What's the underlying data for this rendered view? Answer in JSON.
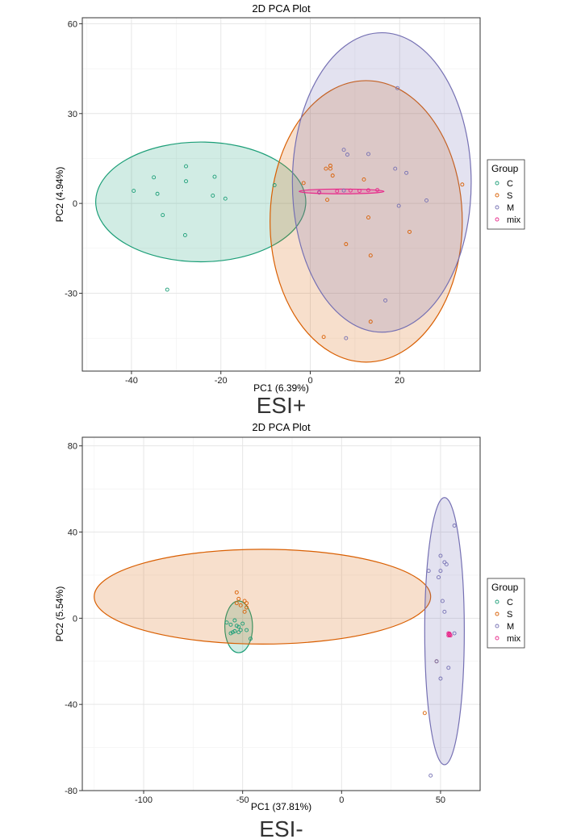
{
  "chart_data": [
    {
      "type": "scatter",
      "title": "2D PCA Plot",
      "xlabel": "PC1 (6.39%)",
      "ylabel": "PC2 (4.94%)",
      "panel_label": "ESI+",
      "xlim": [
        -51,
        38
      ],
      "ylim": [
        -56,
        62
      ],
      "xticks": [
        -40,
        -20,
        0,
        20
      ],
      "yticks": [
        -30,
        0,
        30,
        60
      ],
      "grid": true,
      "legend_title": "Group",
      "legend_placement": "right",
      "series": [
        {
          "name": "C",
          "color": "#1b9e77",
          "points": [
            [
              -39.5,
              4.2
            ],
            [
              -35,
              8.7
            ],
            [
              -34.2,
              3.2
            ],
            [
              -33,
              -3.9
            ],
            [
              -28,
              -10.6
            ],
            [
              -27.8,
              12.4
            ],
            [
              -27.8,
              7.4
            ],
            [
              -21.8,
              2.6
            ],
            [
              -21.4,
              8.9
            ],
            [
              -19,
              1.6
            ],
            [
              -8,
              6.1
            ],
            [
              -32,
              -28.8
            ]
          ],
          "ellipse": {
            "cx": -24.5,
            "cy": 0.5,
            "rx": 23.5,
            "ry": 20
          }
        },
        {
          "name": "S",
          "color": "#d95f02",
          "points": [
            [
              -1.5,
              6.8
            ],
            [
              3.5,
              11.6
            ],
            [
              4.5,
              12.6
            ],
            [
              4.5,
              11.6
            ],
            [
              5,
              9.3
            ],
            [
              3.8,
              1.2
            ],
            [
              8,
              -13.6
            ],
            [
              12,
              8
            ],
            [
              13,
              -4.7
            ],
            [
              13.5,
              -17.4
            ],
            [
              13.5,
              -39.5
            ],
            [
              22.2,
              -9.5
            ],
            [
              34,
              6.3
            ],
            [
              3,
              -44.6
            ]
          ],
          "ellipse": {
            "cx": 12.5,
            "cy": -6,
            "rx": 21.5,
            "ry": 47
          }
        },
        {
          "name": "M",
          "color": "#7570b3",
          "points": [
            [
              7.5,
              17.9
            ],
            [
              8.3,
              16.3
            ],
            [
              13,
              16.5
            ],
            [
              19,
              11.6
            ],
            [
              19.5,
              38.5
            ],
            [
              21.5,
              10.2
            ],
            [
              19.8,
              -0.8
            ],
            [
              26,
              1
            ],
            [
              16.8,
              -32.4
            ],
            [
              8,
              -45
            ],
            [
              2,
              3.8
            ],
            [
              7.5,
              4.3
            ]
          ],
          "ellipse": {
            "cx": 16,
            "cy": 7,
            "rx": 20,
            "ry": 50
          }
        },
        {
          "name": "mix",
          "color": "#e7298a",
          "points": [
            [
              2,
              3.6
            ],
            [
              6,
              4.1
            ],
            [
              9,
              4.3
            ],
            [
              11,
              4.2
            ],
            [
              13,
              4.4
            ],
            [
              15,
              4.5
            ]
          ],
          "ellipse": {
            "cx": 7,
            "cy": 4,
            "rx": 9.5,
            "ry": 0.8
          }
        }
      ]
    },
    {
      "type": "scatter",
      "title": "2D PCA Plot",
      "xlabel": "PC1 (37.81%)",
      "ylabel": "PC2 (5.54%)",
      "panel_label": "ESI-",
      "xlim": [
        -131,
        70
      ],
      "ylim": [
        -80,
        84
      ],
      "xticks": [
        -100,
        -50,
        0,
        50
      ],
      "yticks": [
        -80,
        -40,
        0,
        40,
        80
      ],
      "grid": true,
      "legend_title": "Group",
      "legend_placement": "right",
      "series": [
        {
          "name": "C",
          "color": "#1b9e77",
          "points": [
            [
              -58,
              -2
            ],
            [
              -56,
              -3
            ],
            [
              -54,
              -1
            ],
            [
              -53,
              -3.5
            ],
            [
              -52,
              -4
            ],
            [
              -51,
              -5.5
            ],
            [
              -52,
              -6.5
            ],
            [
              -54,
              -6
            ],
            [
              -55,
              -6.5
            ],
            [
              -50,
              -2.5
            ],
            [
              -48,
              -5.5
            ],
            [
              -46,
              -9.5
            ],
            [
              -56,
              -7
            ]
          ],
          "ellipse": {
            "cx": -52,
            "cy": -4,
            "rx": 7,
            "ry": 12
          }
        },
        {
          "name": "S",
          "color": "#d95f02",
          "points": [
            [
              -53,
              12
            ],
            [
              -52,
              9
            ],
            [
              -53,
              7
            ],
            [
              -49,
              8
            ],
            [
              -48,
              7
            ],
            [
              -48,
              5
            ],
            [
              -49,
              3
            ],
            [
              -51,
              6
            ],
            [
              42,
              -44
            ],
            [
              48,
              -20
            ]
          ],
          "ellipse": {
            "cx": -40,
            "cy": 10,
            "rx": 85,
            "ry": 22
          }
        },
        {
          "name": "M",
          "color": "#7570b3",
          "points": [
            [
              57,
              43
            ],
            [
              50,
              29
            ],
            [
              52,
              26
            ],
            [
              53,
              25
            ],
            [
              44,
              22
            ],
            [
              50,
              22
            ],
            [
              49,
              19
            ],
            [
              51,
              8
            ],
            [
              52,
              3
            ],
            [
              57,
              -7
            ],
            [
              48,
              -20
            ],
            [
              54,
              -23
            ],
            [
              50,
              -28
            ],
            [
              45,
              -73
            ]
          ],
          "ellipse": {
            "cx": 52,
            "cy": -6,
            "rx": 10,
            "ry": 62
          }
        },
        {
          "name": "mix",
          "color": "#e7298a",
          "points": [
            [
              54,
              -7
            ],
            [
              54.5,
              -7.5
            ],
            [
              55,
              -8
            ],
            [
              54,
              -8
            ]
          ],
          "ellipse": {
            "cx": 54.5,
            "cy": -7.5,
            "rx": 0.9,
            "ry": 1.1
          }
        }
      ]
    }
  ]
}
